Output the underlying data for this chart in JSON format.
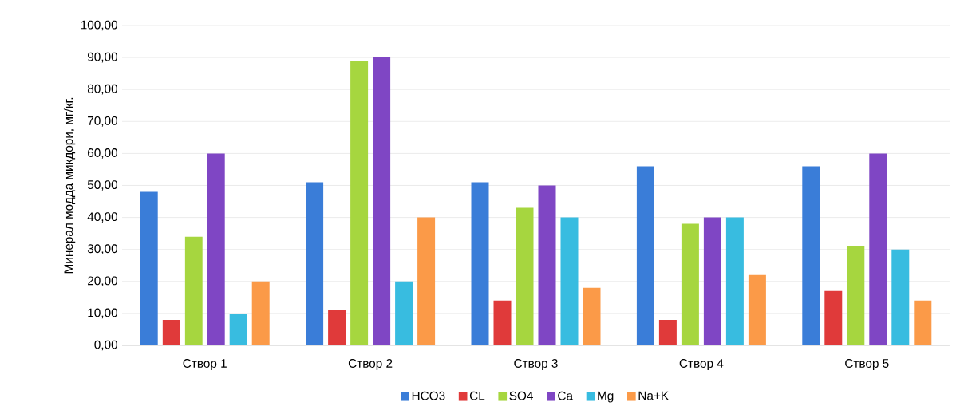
{
  "chart_data": {
    "type": "bar",
    "ylabel": "Минерал модда микдори,  мг/кг.",
    "categories": [
      "Створ 1",
      "Створ 2",
      "Створ 3",
      "Створ 4",
      "Створ 5"
    ],
    "series": [
      {
        "name": "HCO3",
        "color": "#3a7dd8",
        "values": [
          48,
          51,
          51,
          56,
          56
        ]
      },
      {
        "name": "CL",
        "color": "#e03a3a",
        "values": [
          8,
          11,
          14,
          8,
          17
        ]
      },
      {
        "name": "SO4",
        "color": "#a6d63f",
        "values": [
          34,
          89,
          43,
          38,
          31
        ]
      },
      {
        "name": "Ca",
        "color": "#7f46c4",
        "values": [
          60,
          90,
          50,
          40,
          60
        ]
      },
      {
        "name": "Mg",
        "color": "#38bce0",
        "values": [
          10,
          20,
          40,
          40,
          30
        ]
      },
      {
        "name": "Na+K",
        "color": "#fb9a48",
        "values": [
          20,
          40,
          18,
          22,
          14
        ]
      }
    ],
    "ylim": [
      0,
      100
    ],
    "yticks": [
      {
        "value": 0,
        "label": "0,00"
      },
      {
        "value": 10,
        "label": "10,00"
      },
      {
        "value": 20,
        "label": "20,00"
      },
      {
        "value": 30,
        "label": "30,00"
      },
      {
        "value": 40,
        "label": "40,00"
      },
      {
        "value": 50,
        "label": "50,00"
      },
      {
        "value": 60,
        "label": "60,00"
      },
      {
        "value": 70,
        "label": "70,00"
      },
      {
        "value": 80,
        "label": "80,00"
      },
      {
        "value": 90,
        "label": "90,00"
      },
      {
        "value": 100,
        "label": "100,00"
      }
    ],
    "grid": "y",
    "legend": "bottom"
  }
}
